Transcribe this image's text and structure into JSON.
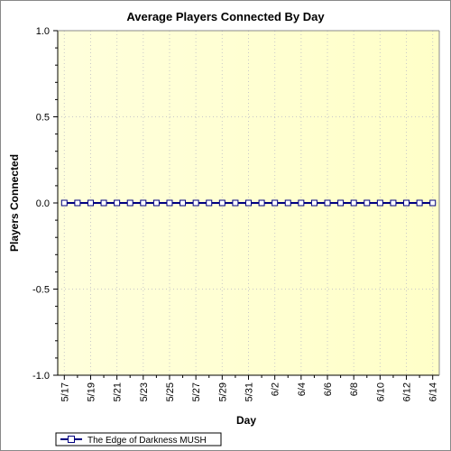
{
  "chart_data": {
    "type": "line",
    "title": "Average Players Connected By Day",
    "xlabel": "Day",
    "ylabel": "Players Connected",
    "ylim": [
      -1.0,
      1.0
    ],
    "yticks": [
      "1.0",
      "0.5",
      "0.0",
      "-0.5",
      "-1.0"
    ],
    "xtick_labels": [
      "5/17",
      "5/19",
      "5/21",
      "5/23",
      "5/25",
      "5/27",
      "5/29",
      "5/31",
      "6/2",
      "6/4",
      "6/6",
      "6/8",
      "6/10",
      "6/12",
      "6/14"
    ],
    "x": [
      "5/17",
      "5/18",
      "5/19",
      "5/20",
      "5/21",
      "5/22",
      "5/23",
      "5/24",
      "5/25",
      "5/26",
      "5/27",
      "5/28",
      "5/29",
      "5/30",
      "5/31",
      "6/1",
      "6/2",
      "6/3",
      "6/4",
      "6/5",
      "6/6",
      "6/7",
      "6/8",
      "6/9",
      "6/10",
      "6/11",
      "6/12",
      "6/13",
      "6/14"
    ],
    "series": [
      {
        "name": "The Edge of Darkness MUSH",
        "values": [
          0,
          0,
          0,
          0,
          0,
          0,
          0,
          0,
          0,
          0,
          0,
          0,
          0,
          0,
          0,
          0,
          0,
          0,
          0,
          0,
          0,
          0,
          0,
          0,
          0,
          0,
          0,
          0,
          0
        ]
      }
    ],
    "grid": true,
    "legend": "bottom-left",
    "colors": {
      "line": "#000080",
      "marker_fill": "#ffffff",
      "plot_gradient_start": "#ffffdc",
      "plot_gradient_end": "#ffffc8"
    }
  }
}
